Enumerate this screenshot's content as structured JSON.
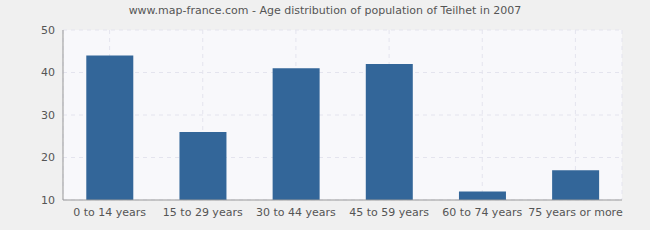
{
  "chart_data": {
    "type": "bar",
    "title": "www.map-france.com - Age distribution of population of Teilhet in 2007",
    "categories": [
      "0 to 14 years",
      "15 to 29 years",
      "30 to 44 years",
      "45 to 59 years",
      "60 to 74 years",
      "75 years or more"
    ],
    "values": [
      44,
      26,
      41,
      42,
      12,
      17
    ],
    "color": "#336699",
    "ylim": [
      10,
      50
    ],
    "yticks": [
      10,
      20,
      30,
      40,
      50
    ],
    "grid": true
  }
}
